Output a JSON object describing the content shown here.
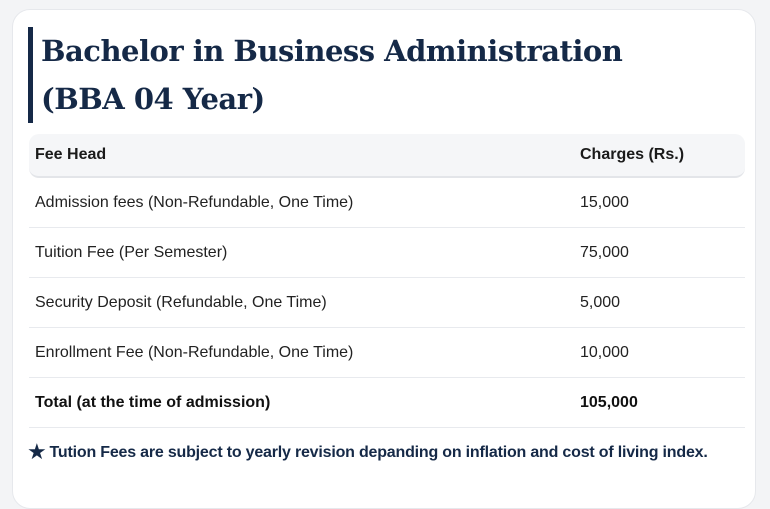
{
  "program": {
    "title": "Bachelor in Business Administration (BBA 04 Year)"
  },
  "table": {
    "headers": [
      "Fee Head",
      "Charges (Rs.)"
    ],
    "rows": [
      {
        "head": "Admission fees (Non-Refundable, One Time)",
        "charge": "15,000"
      },
      {
        "head": "Tuition Fee (Per Semester)",
        "charge": "75,000"
      },
      {
        "head": "Security Deposit (Refundable, One Time)",
        "charge": "5,000"
      },
      {
        "head": "Enrollment Fee (Non-Refundable, One Time)",
        "charge": "10,000"
      }
    ],
    "total": {
      "head": "Total (at the time of admission)",
      "charge": "105,000"
    }
  },
  "note": {
    "icon": "star-icon",
    "text": "Tution Fees are subject to yearly revision depanding on inflation and cost of living index."
  },
  "colors": {
    "accent": "#152947",
    "header_bg": "#f5f6f8"
  }
}
